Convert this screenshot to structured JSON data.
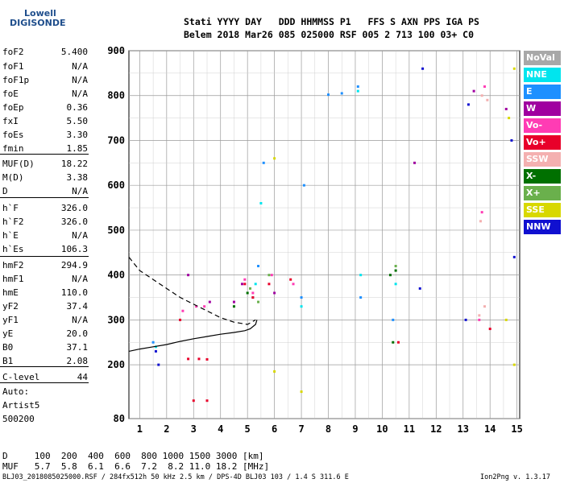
{
  "logo": {
    "top": "Lowell",
    "main": "DIGISONDE"
  },
  "header": {
    "line1": "Stati YYYY DAY   DDD HHMMSS P1   FFS S AXN PPS IGA PS",
    "line2": "Belem 2018 Mar26 085 025000 RSF 005 2 713 100 03+ C0"
  },
  "params": [
    {
      "k": "foF2",
      "v": "5.400"
    },
    {
      "k": "foF1",
      "v": "N/A"
    },
    {
      "k": "foF1p",
      "v": "N/A"
    },
    {
      "k": "foE",
      "v": "N/A"
    },
    {
      "k": "foEp",
      "v": "0.36"
    },
    {
      "k": "fxI",
      "v": "5.50"
    },
    {
      "k": "foEs",
      "v": "3.30"
    },
    {
      "k": "fmin",
      "v": "1.85"
    },
    {
      "k": "MUF(D)",
      "v": "18.22"
    },
    {
      "k": "M(D)",
      "v": "3.38"
    },
    {
      "k": "D",
      "v": "N/A"
    },
    {
      "k": "h`F",
      "v": "326.0"
    },
    {
      "k": "h`F2",
      "v": "326.0"
    },
    {
      "k": "h`E",
      "v": "N/A"
    },
    {
      "k": "h`Es",
      "v": "106.3"
    },
    {
      "k": "hmF2",
      "v": "294.9"
    },
    {
      "k": "hmF1",
      "v": "N/A"
    },
    {
      "k": "hmE",
      "v": "110.0"
    },
    {
      "k": "yF2",
      "v": "37.4"
    },
    {
      "k": "yF1",
      "v": "N/A"
    },
    {
      "k": "yE",
      "v": "20.0"
    },
    {
      "k": "B0",
      "v": "37.1"
    },
    {
      "k": "B1",
      "v": "2.08"
    },
    {
      "k": "C-level",
      "v": "44"
    }
  ],
  "auto": {
    "l1": "Auto:",
    "l2": "Artist5",
    "l3": "500200"
  },
  "legend": [
    {
      "label": "NoVal",
      "color": "#a8a8a8"
    },
    {
      "label": "NNE",
      "color": "#00e5ee"
    },
    {
      "label": "E",
      "color": "#1e90ff"
    },
    {
      "label": "W",
      "color": "#a000a0"
    },
    {
      "label": "Vo-",
      "color": "#ff3cb4"
    },
    {
      "label": "Vo+",
      "color": "#e8002a"
    },
    {
      "label": "SSW",
      "color": "#f4b0b0"
    },
    {
      "label": "X-",
      "color": "#007000"
    },
    {
      "label": "X+",
      "color": "#6ab04c"
    },
    {
      "label": "SSE",
      "color": "#d8d800"
    },
    {
      "label": "NNW",
      "color": "#1010d0"
    }
  ],
  "muf_table": {
    "line1": "D     100  200  400  600  800 1000 1500 3000 [km]",
    "line2": "MUF   5.7  5.8  6.1  6.6  7.2  8.2 11.0 18.2 [MHz]"
  },
  "footer": {
    "left": "BLJ03_2018085025000.RSF / 284fx512h 50 kHz 2.5 km / DPS-4D BLJ03 103 / 1.4 S 311.6 E",
    "right": "Ion2Png v. 1.3.17"
  },
  "chart_data": {
    "type": "scatter",
    "title": "",
    "xlabel": "",
    "ylabel": "",
    "xlim": [
      0.6,
      15.1
    ],
    "ylim": [
      80,
      900
    ],
    "xticks": [
      1,
      2,
      3,
      4,
      5,
      6,
      7,
      8,
      9,
      10,
      11,
      12,
      13,
      14,
      15
    ],
    "yticks": [
      80,
      200,
      300,
      400,
      500,
      600,
      700,
      800,
      900
    ],
    "grid": true,
    "legend_placement": "right",
    "series": [
      {
        "name": "NNE",
        "color": "#00e5ee",
        "points": [
          [
            1.6,
            240
          ],
          [
            5.3,
            380
          ],
          [
            5.5,
            560
          ],
          [
            7.0,
            330
          ],
          [
            9.1,
            810
          ],
          [
            9.2,
            400
          ],
          [
            10.5,
            380
          ]
        ]
      },
      {
        "name": "E",
        "color": "#1e90ff",
        "points": [
          [
            1.5,
            250
          ],
          [
            5.2,
            350
          ],
          [
            5.4,
            420
          ],
          [
            5.6,
            650
          ],
          [
            7.0,
            350
          ],
          [
            7.1,
            600
          ],
          [
            8.0,
            802
          ],
          [
            8.5,
            805
          ],
          [
            9.1,
            820
          ],
          [
            9.2,
            350
          ],
          [
            10.4,
            300
          ]
        ]
      },
      {
        "name": "W",
        "color": "#a000a0",
        "points": [
          [
            2.8,
            400
          ],
          [
            3.6,
            340
          ],
          [
            4.5,
            340
          ],
          [
            4.8,
            380
          ],
          [
            6.0,
            360
          ],
          [
            11.2,
            650
          ],
          [
            13.4,
            810
          ],
          [
            14.6,
            770
          ]
        ]
      },
      {
        "name": "Vo-",
        "color": "#ff3cb4",
        "points": [
          [
            2.6,
            320
          ],
          [
            3.1,
            330
          ],
          [
            3.4,
            330
          ],
          [
            4.9,
            390
          ],
          [
            5.2,
            360
          ],
          [
            5.9,
            400
          ],
          [
            6.7,
            380
          ],
          [
            13.6,
            300
          ],
          [
            13.7,
            540
          ],
          [
            13.8,
            820
          ]
        ]
      },
      {
        "name": "Vo+",
        "color": "#e8002a",
        "points": [
          [
            2.5,
            300
          ],
          [
            2.8,
            213
          ],
          [
            3.2,
            213
          ],
          [
            3.5,
            212
          ],
          [
            3.0,
            120
          ],
          [
            3.5,
            120
          ],
          [
            4.9,
            380
          ],
          [
            5.2,
            350
          ],
          [
            5.8,
            380
          ],
          [
            6.6,
            390
          ],
          [
            10.6,
            250
          ],
          [
            14.0,
            280
          ]
        ]
      },
      {
        "name": "SSW",
        "color": "#f4b0b0",
        "points": [
          [
            13.6,
            310
          ],
          [
            13.65,
            520
          ],
          [
            13.7,
            800
          ],
          [
            13.8,
            330
          ],
          [
            13.9,
            790
          ]
        ]
      },
      {
        "name": "X-",
        "color": "#007000",
        "points": [
          [
            4.5,
            330
          ],
          [
            5.0,
            360
          ],
          [
            10.3,
            400
          ],
          [
            10.4,
            250
          ],
          [
            10.5,
            410
          ]
        ]
      },
      {
        "name": "X+",
        "color": "#6ab04c",
        "points": [
          [
            5.1,
            370
          ],
          [
            5.4,
            340
          ],
          [
            5.8,
            400
          ],
          [
            10.5,
            420
          ]
        ]
      },
      {
        "name": "SSE",
        "color": "#d8d800",
        "points": [
          [
            6.0,
            660
          ],
          [
            6.0,
            185
          ],
          [
            7.0,
            140
          ],
          [
            14.6,
            300
          ],
          [
            14.7,
            750
          ],
          [
            14.9,
            200
          ],
          [
            14.9,
            860
          ]
        ]
      },
      {
        "name": "NNW",
        "color": "#1010d0",
        "points": [
          [
            1.6,
            230
          ],
          [
            1.7,
            200
          ],
          [
            11.4,
            370
          ],
          [
            11.5,
            860
          ],
          [
            13.1,
            300
          ],
          [
            13.2,
            780
          ],
          [
            14.8,
            700
          ],
          [
            14.9,
            440
          ]
        ]
      }
    ],
    "profile_dashed": [
      [
        0.6,
        440
      ],
      [
        1.0,
        410
      ],
      [
        1.5,
        390
      ],
      [
        2.0,
        370
      ],
      [
        2.5,
        350
      ],
      [
        3.0,
        335
      ],
      [
        3.5,
        320
      ],
      [
        4.0,
        305
      ],
      [
        4.5,
        295
      ],
      [
        5.0,
        290
      ],
      [
        5.3,
        300
      ]
    ],
    "profile_solid": [
      [
        0.6,
        230
      ],
      [
        1.0,
        235
      ],
      [
        1.5,
        240
      ],
      [
        2.0,
        245
      ],
      [
        2.5,
        252
      ],
      [
        3.0,
        258
      ],
      [
        3.5,
        263
      ],
      [
        4.0,
        268
      ],
      [
        4.5,
        272
      ],
      [
        4.9,
        276
      ],
      [
        5.1,
        280
      ],
      [
        5.3,
        290
      ],
      [
        5.35,
        300
      ]
    ]
  }
}
